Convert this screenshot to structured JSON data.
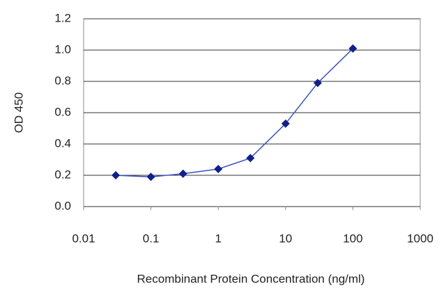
{
  "chart_data": {
    "type": "line",
    "x_label": "Recombinant Protein Concentration (ng/ml)",
    "y_label": "OD 450",
    "x": [
      0.03,
      0.1,
      0.3,
      1,
      3,
      10,
      30,
      100
    ],
    "values": [
      0.2,
      0.19,
      0.21,
      0.24,
      0.31,
      0.53,
      0.79,
      1.01
    ],
    "color": "#3a4fc0",
    "marker_color": "#10208a",
    "xscale": "log",
    "xlim": [
      0.01,
      1000
    ],
    "xticks": [
      0.01,
      0.1,
      1,
      10,
      100,
      1000
    ],
    "ylim": [
      0,
      1.2
    ],
    "yticks": [
      {
        "value": 0,
        "label": "0.0"
      },
      0.2,
      0.4,
      0.6,
      0.8,
      {
        "value": 1,
        "label": "1.0"
      },
      1.2
    ],
    "grid": true
  }
}
